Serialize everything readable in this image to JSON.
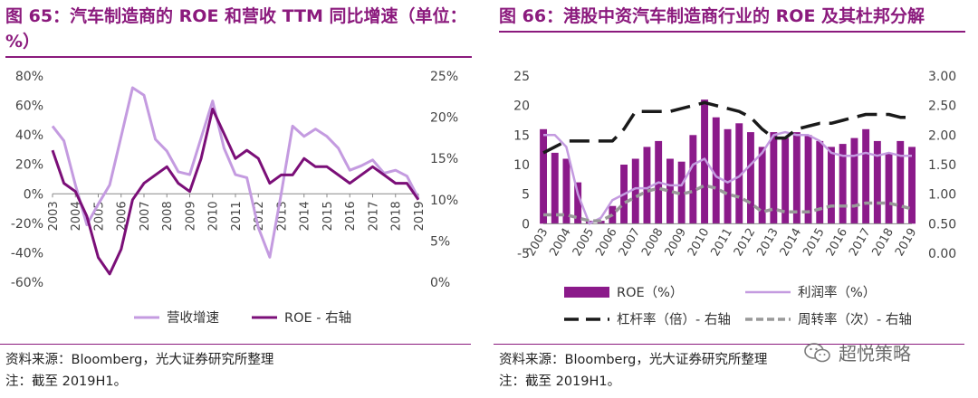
{
  "left": {
    "title": "图 65：汽车制造商的 ROE 和营收 TTM 同比增速（单位：%）",
    "source": "资料来源：Bloomberg，光大证券研究所整理",
    "note": "注：截至 2019H1。",
    "chart_data": {
      "type": "line",
      "categories": [
        "2003",
        "2004",
        "2005",
        "2006",
        "2007",
        "2008",
        "2009",
        "2010",
        "2011",
        "2012",
        "2013",
        "2014",
        "2015",
        "2016",
        "2017",
        "2018",
        "2019"
      ],
      "y_left_ticks": [
        "80%",
        "60%",
        "40%",
        "20%",
        "0%",
        "-20%",
        "-40%",
        "-60%"
      ],
      "y_right_ticks": [
        "25%",
        "20%",
        "15%",
        "10%",
        "5%",
        "0%"
      ],
      "ylim_left": [
        -60,
        80
      ],
      "ylim_right": [
        0,
        25
      ],
      "legend_position": "bottom",
      "series": [
        {
          "name": "营收增速",
          "axis": "left",
          "color": "#c49be0",
          "x": [
            2003,
            2003.5,
            2004,
            2004.5,
            2005,
            2005.5,
            2006,
            2006.5,
            2007,
            2007.5,
            2008,
            2008.5,
            2009,
            2009.5,
            2010,
            2010.5,
            2011,
            2011.5,
            2012,
            2012.5,
            2013,
            2013.5,
            2014,
            2014.5,
            2015,
            2015.5,
            2016,
            2016.5,
            2017,
            2017.5,
            2018,
            2018.5,
            2019
          ],
          "values": [
            46,
            36,
            6,
            -21,
            -7,
            6,
            39,
            72,
            67,
            37,
            29,
            15,
            13,
            38,
            63,
            31,
            13,
            11,
            -23,
            -43,
            0,
            46,
            39,
            44,
            39,
            31,
            16,
            19,
            23,
            14,
            16,
            12,
            -3
          ]
        },
        {
          "name": "ROE - 右轴",
          "axis": "right",
          "color": "#7b0f78",
          "x": [
            2003,
            2003.5,
            2004,
            2004.5,
            2005,
            2005.5,
            2006,
            2006.5,
            2007,
            2007.5,
            2008,
            2008.5,
            2009,
            2009.5,
            2010,
            2010.5,
            2011,
            2011.5,
            2012,
            2012.5,
            2013,
            2013.5,
            2014,
            2014.5,
            2015,
            2015.5,
            2016,
            2016.5,
            2017,
            2017.5,
            2018,
            2018.5,
            2019
          ],
          "values": [
            16,
            12,
            11,
            8,
            3,
            1,
            4,
            10,
            12,
            13,
            14,
            12,
            11,
            15,
            21,
            18,
            15,
            16,
            15,
            12,
            13,
            13,
            15,
            14,
            14,
            13,
            12,
            13,
            14,
            13,
            12,
            12,
            10
          ]
        }
      ]
    }
  },
  "right": {
    "title": "图 66：港股中资汽车制造商行业的 ROE 及其杜邦分解",
    "source": "资料来源：Bloomberg，光大证券研究所整理",
    "note": "注：截至 2019H1。",
    "watermark": "超悦策略",
    "chart_data": {
      "type": "bar",
      "categories": [
        "2003",
        "2004",
        "2005",
        "2006",
        "2007",
        "2008",
        "2009",
        "2010",
        "2011",
        "2012",
        "2013",
        "2014",
        "2015",
        "2016",
        "2017",
        "2018",
        "2019"
      ],
      "y_left_ticks": [
        "25",
        "20",
        "15",
        "10",
        "5",
        "0",
        "-5"
      ],
      "y_right_ticks": [
        "3.00",
        "2.50",
        "2.00",
        "1.50",
        "1.00",
        "0.50",
        "0.00"
      ],
      "ylim_left": [
        -5,
        25
      ],
      "ylim_right": [
        0,
        3
      ],
      "legend_position": "bottom",
      "series": [
        {
          "name": "ROE（%）",
          "axis": "left",
          "kind": "bar",
          "color": "#8b1a8a",
          "x": [
            2003,
            2003.5,
            2004,
            2004.5,
            2005,
            2005.5,
            2006,
            2006.5,
            2007,
            2007.5,
            2008,
            2008.5,
            2009,
            2009.5,
            2010,
            2010.5,
            2011,
            2011.5,
            2012,
            2012.5,
            2013,
            2013.5,
            2014,
            2014.5,
            2015,
            2015.5,
            2016,
            2016.5,
            2017,
            2017.5,
            2018,
            2018.5,
            2019
          ],
          "values": [
            16,
            12,
            11,
            7,
            0.5,
            0.5,
            3,
            10,
            11,
            13,
            14,
            11,
            10.5,
            15,
            21,
            18,
            16,
            17,
            15.5,
            13,
            15.5,
            14.5,
            15.5,
            15,
            14,
            13,
            13.5,
            14.5,
            16,
            14,
            12,
            14,
            13
          ]
        },
        {
          "name": "利润率（%）",
          "axis": "left",
          "kind": "line",
          "color": "#c49be0",
          "x": [
            2003,
            2003.5,
            2004,
            2004.5,
            2005,
            2005.5,
            2006,
            2006.5,
            2007,
            2007.5,
            2008,
            2008.5,
            2009,
            2009.5,
            2010,
            2010.5,
            2011,
            2011.5,
            2012,
            2012.5,
            2013,
            2013.5,
            2014,
            2014.5,
            2015,
            2015.5,
            2016,
            2016.5,
            2017,
            2017.5,
            2018,
            2018.5,
            2019
          ],
          "values": [
            15,
            15,
            13,
            5,
            0,
            1,
            4,
            5,
            6,
            6,
            7,
            6.5,
            6.5,
            10,
            11,
            8,
            7,
            8,
            10,
            12,
            15,
            15.5,
            15,
            15,
            14,
            12,
            11.5,
            11.5,
            12,
            11.5,
            12,
            11.5,
            11.5
          ]
        },
        {
          "name": "杠杆率（倍）- 右轴",
          "axis": "right",
          "kind": "line",
          "dash": "long",
          "color": "#1a1a1a",
          "x": [
            2003,
            2003.5,
            2004,
            2004.5,
            2005,
            2005.5,
            2006,
            2006.5,
            2007,
            2007.5,
            2008,
            2008.5,
            2009,
            2009.5,
            2010,
            2010.5,
            2011,
            2011.5,
            2012,
            2012.5,
            2013,
            2013.5,
            2014,
            2014.5,
            2015,
            2015.5,
            2016,
            2016.5,
            2017,
            2017.5,
            2018,
            2018.5,
            2019
          ],
          "values": [
            1.7,
            1.8,
            1.9,
            1.9,
            1.9,
            1.9,
            1.9,
            2.1,
            2.4,
            2.4,
            2.4,
            2.4,
            2.45,
            2.5,
            2.55,
            2.5,
            2.45,
            2.4,
            2.3,
            2.1,
            1.95,
            1.95,
            2.1,
            2.15,
            2.2,
            2.2,
            2.25,
            2.3,
            2.35,
            2.35,
            2.35,
            2.3,
            2.3
          ]
        },
        {
          "name": "周转率（次）- 右轴",
          "axis": "right",
          "kind": "line",
          "dash": "short",
          "color": "#999999",
          "x": [
            2003,
            2003.5,
            2004,
            2004.5,
            2005,
            2005.5,
            2006,
            2006.5,
            2007,
            2007.5,
            2008,
            2008.5,
            2009,
            2009.5,
            2010,
            2010.5,
            2011,
            2011.5,
            2012,
            2012.5,
            2013,
            2013.5,
            2014,
            2014.5,
            2015,
            2015.5,
            2016,
            2016.5,
            2017,
            2017.5,
            2018,
            2018.5,
            2019
          ],
          "values": [
            0.65,
            0.65,
            0.65,
            0.6,
            0.55,
            0.55,
            0.65,
            0.85,
            0.95,
            1.05,
            1.1,
            1.05,
            1.0,
            1.05,
            1.15,
            1.1,
            1.0,
            0.95,
            0.85,
            0.7,
            0.75,
            0.7,
            0.7,
            0.7,
            0.75,
            0.8,
            0.8,
            0.8,
            0.85,
            0.85,
            0.85,
            0.8,
            0.75
          ]
        }
      ]
    }
  }
}
